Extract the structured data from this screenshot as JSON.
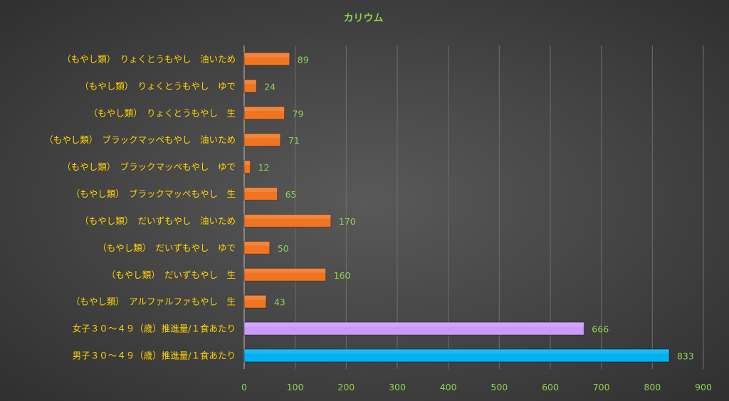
{
  "chart_data": {
    "type": "bar",
    "orientation": "horizontal",
    "title": "カリウム",
    "categories": [
      "（もやし類）　りょくとうもやし　油いため",
      "（もやし類）　りょくとうもやし　ゆで",
      "（もやし類）　りょくとうもやし　生",
      "（もやし類）　ブラックマッペもやし　油いため",
      "（もやし類）　ブラックマッペもやし　ゆで",
      "（もやし類）　ブラックマッペもやし　生",
      "（もやし類）　だいずもやし　油いため",
      "（もやし類）　だいずもやし　ゆで",
      "（もやし類）　だいずもやし　生",
      "（もやし類）　アルファルファもやし　生",
      "女子３０～４９（歳）推進量/１食あたり",
      "男子３０～４９（歳）推進量/１食あたり"
    ],
    "values": [
      89,
      24,
      79,
      71,
      12,
      65,
      170,
      50,
      160,
      43,
      666,
      833
    ],
    "bar_colors": [
      "#f07522",
      "#f07522",
      "#f07522",
      "#f07522",
      "#f07522",
      "#f07522",
      "#f07522",
      "#f07522",
      "#f07522",
      "#f07522",
      "#cc99ff",
      "#00b0f0"
    ],
    "xlim": [
      0,
      900
    ],
    "x_ticks": [
      0,
      100,
      200,
      300,
      400,
      500,
      600,
      700,
      800,
      900
    ],
    "grid": true,
    "legend": "none",
    "colors": {
      "title": "#92d050",
      "category_label": "#ffd400",
      "tick_label": "#92d050",
      "data_label": "#92d050",
      "gridline": "#6e6e6e",
      "axis_line": "#bfbfbf"
    }
  }
}
